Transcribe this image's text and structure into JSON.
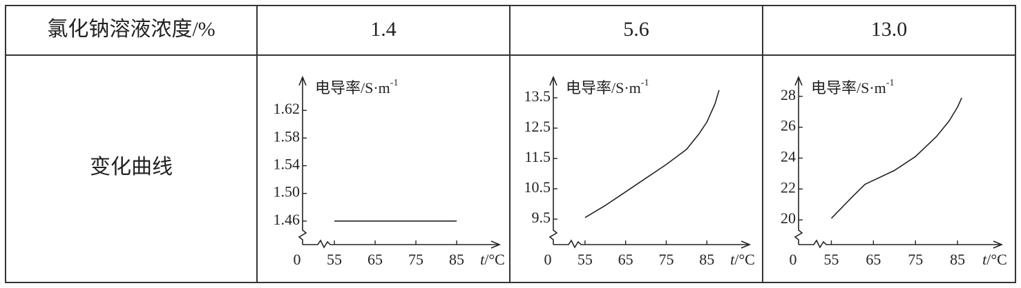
{
  "table": {
    "header": [
      "氯化钠溶液浓度/%",
      "1.4",
      "5.6",
      "13.0"
    ],
    "row_label": "变化曲线",
    "charts": [
      {
        "type": "line",
        "y_label": "电导率/S·m",
        "y_label_sup": "-1",
        "x_label_var": "t",
        "x_label_unit": "/°C",
        "origin_label": "0",
        "x": [
          55,
          85
        ],
        "values": [
          1.46,
          1.46
        ],
        "color": "#222222",
        "xlim": [
          47.2,
          95.5
        ],
        "ylim": [
          1.426,
          1.668
        ],
        "xticks": [
          55,
          65,
          75,
          85
        ],
        "yticks": [
          1.46,
          {
            "value": 1.5,
            "label": "1.50"
          },
          1.54,
          1.58,
          1.62
        ]
      },
      {
        "type": "line",
        "y_label": "电导率/S·m",
        "y_label_sup": "-1",
        "x_label_var": "t",
        "x_label_unit": "/°C",
        "origin_label": "0",
        "x": [
          55,
          60,
          65,
          70,
          75,
          80,
          83,
          85,
          87,
          88
        ],
        "values": [
          9.55,
          9.95,
          10.4,
          10.85,
          11.3,
          11.8,
          12.3,
          12.7,
          13.3,
          13.75
        ],
        "color": "#222222",
        "xlim": [
          47.2,
          95.5
        ],
        "ylim": [
          8.66,
          14.18
        ],
        "xticks": [
          55,
          65,
          75,
          85
        ],
        "yticks": [
          9.5,
          10.5,
          11.5,
          12.5,
          13.5
        ]
      },
      {
        "type": "line",
        "y_label": "电导率/S·m",
        "y_label_sup": "-1",
        "x_label_var": "t",
        "x_label_unit": "/°C",
        "origin_label": "0",
        "x": [
          55,
          60,
          63,
          70,
          75,
          80,
          83,
          85,
          86
        ],
        "values": [
          20.1,
          21.5,
          22.3,
          23.2,
          24.1,
          25.4,
          26.4,
          27.3,
          27.9
        ],
        "color": "#222222",
        "xlim": [
          47.2,
          95.5
        ],
        "ylim": [
          18.4,
          29.24
        ],
        "xticks": [
          55,
          65,
          75,
          85
        ],
        "yticks": [
          20,
          22,
          24,
          26,
          28
        ]
      }
    ]
  }
}
